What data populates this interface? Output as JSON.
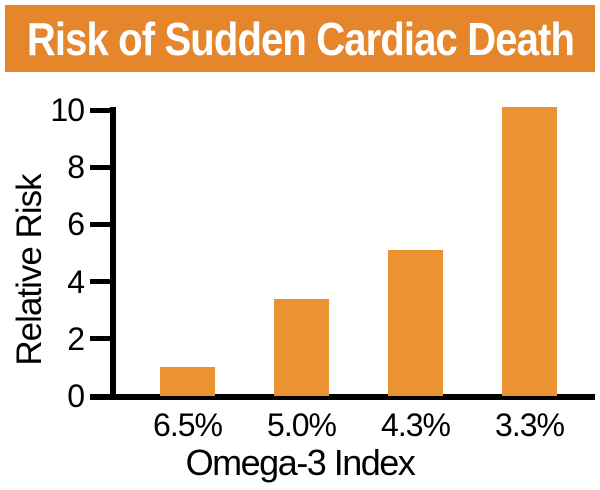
{
  "header": {
    "title": "Risk of Sudden Cardiac Death",
    "bg": "#E5862D",
    "text_color": "#FFFFFF"
  },
  "chart_data": {
    "type": "bar",
    "categories": [
      "6.5%",
      "5.0%",
      "4.3%",
      "3.3%"
    ],
    "values": [
      1.0,
      3.4,
      5.1,
      10.1
    ],
    "title": "Risk of Sudden Cardiac Death",
    "xlabel": "Omega-3 Index",
    "ylabel": "Relative Risk",
    "yticks": [
      0,
      2,
      4,
      6,
      8,
      10
    ],
    "ylim": [
      0,
      10.3
    ],
    "bar_color": "#EB9231",
    "axis_color": "#000000",
    "text_color": "#000000",
    "grid": false,
    "legend": false
  }
}
